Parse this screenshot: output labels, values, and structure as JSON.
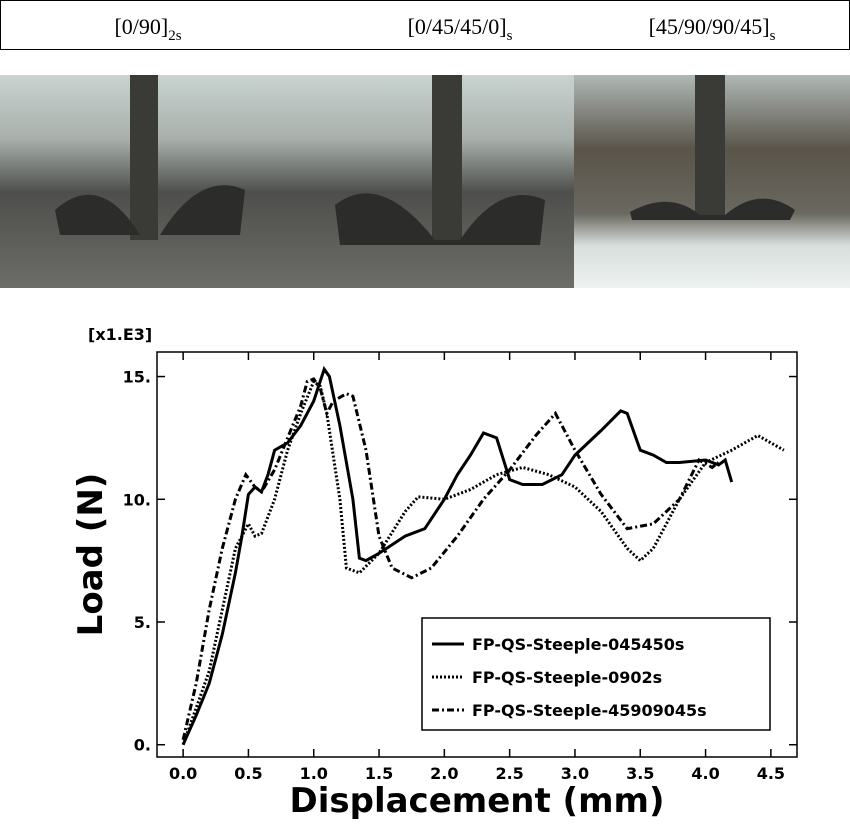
{
  "photos": [
    {
      "label": "[0/90]",
      "subscript": "2s"
    },
    {
      "label": "[0/45/45/0]",
      "subscript": "s"
    },
    {
      "label": "[45/90/90/45]",
      "subscript": "s"
    }
  ],
  "chart_data": {
    "type": "line",
    "multiplier": "[x1.E3]",
    "x_label": "Displacement (mm)",
    "y_label": "Load (N)",
    "xlim": [
      -0.2,
      4.7
    ],
    "ylim": [
      -0.5,
      16
    ],
    "xticks": [
      {
        "value": 0,
        "label": "0.0"
      },
      0.5,
      {
        "value": 1,
        "label": "1.0"
      },
      1.5,
      {
        "value": 2,
        "label": "2.0"
      },
      2.5,
      {
        "value": 3,
        "label": "3.0"
      },
      3.5,
      {
        "value": 4,
        "label": "4.0"
      },
      4.5
    ],
    "yticks": [
      {
        "value": 0,
        "label": "0."
      },
      {
        "value": 5,
        "label": "5."
      },
      {
        "value": 10,
        "label": "10."
      },
      {
        "value": 15,
        "label": "15."
      }
    ],
    "legend": "lower right",
    "series": [
      {
        "name": "FP-QS-Steeple-045450s",
        "color": "#000000",
        "dash": "solid",
        "x": [
          0,
          0.1,
          0.2,
          0.3,
          0.4,
          0.45,
          0.5,
          0.55,
          0.6,
          0.65,
          0.7,
          0.8,
          0.9,
          1.0,
          1.08,
          1.12,
          1.2,
          1.3,
          1.35,
          1.4,
          1.5,
          1.7,
          1.85,
          2.0,
          2.1,
          2.2,
          2.3,
          2.4,
          2.5,
          2.6,
          2.75,
          2.9,
          3.0,
          3.2,
          3.35,
          3.4,
          3.5,
          3.6,
          3.7,
          3.8,
          4.0,
          4.1,
          4.15,
          4.2
        ],
        "values": [
          0,
          1.2,
          2.5,
          4.5,
          7,
          8.5,
          10.2,
          10.5,
          10.3,
          11,
          12,
          12.3,
          13,
          14,
          15.3,
          15,
          13,
          10,
          7.6,
          7.5,
          7.8,
          8.5,
          8.8,
          10,
          11,
          11.8,
          12.7,
          12.5,
          10.8,
          10.6,
          10.6,
          11,
          11.8,
          12.8,
          13.6,
          13.5,
          12,
          11.8,
          11.5,
          11.5,
          11.6,
          11.4,
          11.6,
          10.7
        ]
      },
      {
        "name": "FP-QS-Steeple-0902s",
        "color": "#000000",
        "dash": "dotted",
        "x": [
          0,
          0.1,
          0.2,
          0.3,
          0.4,
          0.5,
          0.55,
          0.6,
          0.7,
          0.8,
          0.9,
          1.0,
          1.05,
          1.1,
          1.2,
          1.25,
          1.35,
          1.5,
          1.7,
          1.8,
          2.0,
          2.2,
          2.4,
          2.6,
          2.8,
          3.0,
          3.2,
          3.4,
          3.5,
          3.6,
          3.8,
          4.0,
          4.2,
          4.4,
          4.6
        ],
        "values": [
          0,
          1.5,
          3,
          5.5,
          8,
          9,
          8.5,
          8.6,
          10,
          12,
          13.5,
          14.8,
          14.6,
          13.5,
          10,
          7.2,
          7.0,
          7.8,
          9.5,
          10.1,
          10.0,
          10.4,
          11.0,
          11.3,
          11.0,
          10.5,
          9.5,
          8.0,
          7.5,
          8,
          10,
          11.5,
          12.0,
          12.6,
          12.0
        ]
      },
      {
        "name": "FP-QS-Steeple-45909045s",
        "color": "#000000",
        "dash": "dashdot",
        "x": [
          0,
          0.1,
          0.2,
          0.3,
          0.4,
          0.48,
          0.55,
          0.6,
          0.7,
          0.8,
          0.9,
          0.95,
          1.0,
          1.05,
          1.1,
          1.15,
          1.25,
          1.3,
          1.4,
          1.5,
          1.6,
          1.75,
          1.9,
          2.1,
          2.3,
          2.5,
          2.7,
          2.85,
          3.0,
          3.2,
          3.4,
          3.6,
          3.8,
          3.95,
          4.05,
          4.1
        ],
        "values": [
          0.2,
          2.5,
          5.5,
          8,
          10,
          11,
          10.5,
          10.3,
          11.2,
          12.5,
          13.8,
          14.8,
          14.9,
          14.5,
          13.5,
          14,
          14.3,
          14.2,
          12,
          8.5,
          7.2,
          6.8,
          7.2,
          8.5,
          10.0,
          11.2,
          12.6,
          13.5,
          12.0,
          10.2,
          8.8,
          9.0,
          10.0,
          11.6,
          11.3,
          11.5
        ]
      }
    ]
  }
}
